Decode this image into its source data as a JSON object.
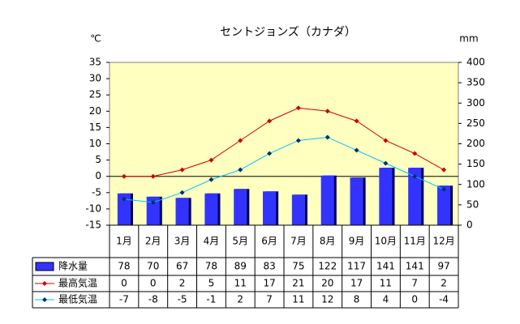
{
  "chart_data": {
    "type": "bar_line",
    "title": "セントジョンズ（カナダ）",
    "ylabel": "℃",
    "y2label": "mm",
    "categories": [
      "1月",
      "2月",
      "3月",
      "4月",
      "5月",
      "6月",
      "7月",
      "8月",
      "9月",
      "10月",
      "11月",
      "12月"
    ],
    "ylim": [
      -15,
      35
    ],
    "yticks": [
      -15,
      -10,
      -5,
      0,
      5,
      10,
      15,
      20,
      25,
      30,
      35
    ],
    "y2lim": [
      0,
      400
    ],
    "y2ticks": [
      0,
      50,
      100,
      150,
      200,
      250,
      300,
      350,
      400
    ],
    "series": [
      {
        "name": "降水量",
        "type": "bar",
        "axis": "y2",
        "color": "#3333ff",
        "values": [
          78,
          70,
          67,
          78,
          89,
          83,
          75,
          122,
          117,
          141,
          141,
          97
        ]
      },
      {
        "name": "最高気温",
        "type": "line",
        "axis": "y",
        "color": "#cc0000",
        "values": [
          0,
          0,
          2,
          5,
          11,
          17,
          21,
          20,
          17,
          11,
          7,
          2
        ]
      },
      {
        "name": "最低気温",
        "type": "line",
        "axis": "y",
        "color": "#00c0ff",
        "values": [
          -7,
          -8,
          -5,
          -1,
          2,
          7,
          11,
          12,
          8,
          4,
          0,
          -4
        ]
      }
    ]
  }
}
